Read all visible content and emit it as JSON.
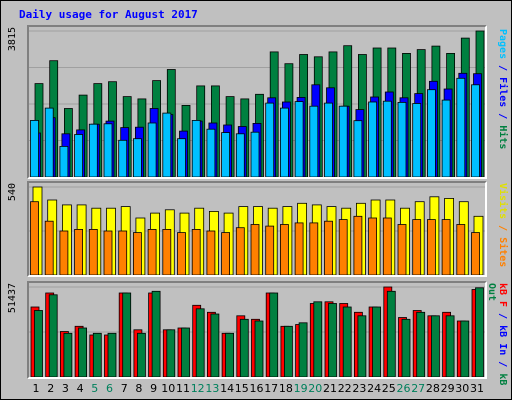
{
  "title": "Daily usage for August 2017",
  "right_labels": {
    "top": [
      {
        "text": "Pages",
        "color": "#00c0ff"
      },
      {
        "text": " / ",
        "color": "#0000ff"
      },
      {
        "text": "Files",
        "color": "#0000ff"
      },
      {
        "text": " / ",
        "color": "#0000ff"
      },
      {
        "text": "Hits",
        "color": "#008040"
      }
    ],
    "mid": [
      {
        "text": "Visits",
        "color": "#e0e000"
      },
      {
        "text": " / ",
        "color": "#ff8000"
      },
      {
        "text": "Sites",
        "color": "#ff8000"
      }
    ],
    "bot": [
      {
        "text": "kB F",
        "color": "#ff0000"
      },
      {
        "text": " / ",
        "color": "#0000ff"
      },
      {
        "text": "kB In",
        "color": "#0000ff"
      },
      {
        "text": " / ",
        "color": "#0000ff"
      },
      {
        "text": "kB Out",
        "color": "#008040"
      }
    ]
  },
  "colors": {
    "hits": "#008040",
    "files": "#0000ff",
    "pages": "#00c0ff",
    "visits": "#ffff00",
    "sites": "#ff8000",
    "kbin": "#ff0000",
    "kbout": "#008040"
  },
  "chart_data": {
    "type": "bar",
    "categories": [
      "1",
      "2",
      "3",
      "4",
      "5",
      "6",
      "7",
      "8",
      "9",
      "10",
      "11",
      "12",
      "13",
      "14",
      "15",
      "16",
      "17",
      "18",
      "19",
      "20",
      "21",
      "22",
      "23",
      "24",
      "25",
      "26",
      "27",
      "28",
      "29",
      "30",
      "31"
    ],
    "weekend_days": [
      "5",
      "6",
      "12",
      "13",
      "19",
      "20",
      "26",
      "27"
    ],
    "panels": [
      {
        "id": "hits-files-pages",
        "ymax_label": "3815",
        "ymax": 3815,
        "series": [
          {
            "key": "hits",
            "values": [
              2440,
              3040,
              1790,
              2140,
              2440,
              2490,
              2100,
              2040,
              2520,
              2810,
              1870,
              2380,
              2380,
              2100,
              2040,
              2160,
              3270,
              2960,
              3200,
              3140,
              3270,
              3430,
              3200,
              3370,
              3370,
              3230,
              3330,
              3420,
              3230,
              3630,
              3815
            ]
          },
          {
            "key": "files",
            "values": [
              1150,
              1550,
              1130,
              1230,
              1380,
              1460,
              1290,
              1300,
              1790,
              1630,
              1200,
              1460,
              1410,
              1360,
              1320,
              1400,
              2070,
              1960,
              2080,
              2410,
              2330,
              1850,
              1760,
              2090,
              2220,
              2070,
              2180,
              2500,
              2300,
              2710,
              2700
            ]
          },
          {
            "key": "pages",
            "values": [
              1480,
              1800,
              800,
              1110,
              1380,
              1390,
              960,
              1000,
              1410,
              1670,
              1000,
              1480,
              1250,
              1160,
              1130,
              1170,
              1930,
              1800,
              1970,
              1850,
              1930,
              1850,
              1470,
              1960,
              1980,
              1950,
              1920,
              2280,
              2010,
              2580,
              2410
            ]
          }
        ]
      },
      {
        "id": "visits-sites",
        "ymax_label": "540",
        "ymax": 540,
        "series": [
          {
            "key": "visits",
            "values": [
              540,
              460,
              430,
              430,
              410,
              410,
              420,
              350,
              380,
              400,
              380,
              410,
              390,
              380,
              420,
              420,
              410,
              420,
              440,
              430,
              420,
              410,
              440,
              460,
              460,
              410,
              450,
              480,
              470,
              450,
              360
            ]
          },
          {
            "key": "sites",
            "values": [
              450,
              330,
              270,
              280,
              280,
              270,
              270,
              260,
              280,
              280,
              260,
              280,
              270,
              260,
              290,
              310,
              300,
              310,
              320,
              320,
              330,
              340,
              360,
              350,
              350,
              310,
              340,
              340,
              340,
              310,
              260
            ]
          }
        ]
      },
      {
        "id": "kb-in-out",
        "ymax_label": "51437",
        "ymax": 51437,
        "series": [
          {
            "key": "kbin",
            "values": [
              40000,
              48000,
              26000,
              29000,
              24000,
              24000,
              48000,
              27000,
              48000,
              27000,
              28000,
              41000,
              37000,
              25000,
              35000,
              33000,
              48000,
              29000,
              30000,
              42000,
              43000,
              42000,
              37000,
              40000,
              51437,
              34000,
              38000,
              35000,
              37000,
              32000,
              50000
            ]
          },
          {
            "key": "kbout",
            "values": [
              38000,
              47000,
              25000,
              28000,
              25000,
              25000,
              48000,
              25000,
              49000,
              27000,
              28000,
              39000,
              36000,
              25000,
              33000,
              32000,
              48000,
              29000,
              31000,
              43000,
              42000,
              40000,
              35000,
              40000,
              49000,
              33000,
              37000,
              35000,
              35000,
              32000,
              51000
            ]
          }
        ]
      }
    ]
  }
}
